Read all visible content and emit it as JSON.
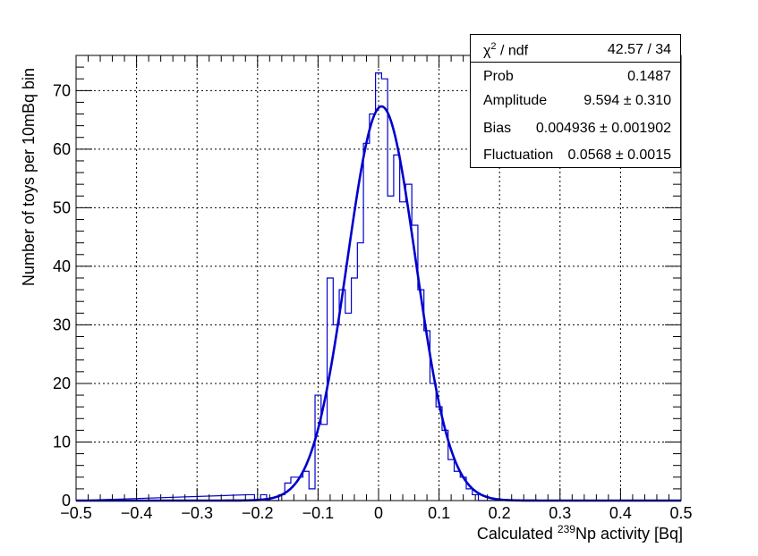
{
  "chart_data": {
    "type": "histogram",
    "xlabel_prefix": "Calculated ",
    "xlabel_sup": "239",
    "xlabel_suffix": "Np activity [Bq]",
    "ylabel": "Number of toys per 10mBq bin",
    "xlim": [
      -0.5,
      0.5
    ],
    "ylim": [
      0,
      76
    ],
    "grid": true,
    "x_ticks": [
      -0.5,
      -0.4,
      -0.3,
      -0.2,
      -0.1,
      0,
      0.1,
      0.2,
      0.3,
      0.4,
      0.5
    ],
    "x_tick_labels": [
      "−0.5",
      "−0.4",
      "−0.3",
      "−0.2",
      "−0.1",
      "0",
      "0.1",
      "0.2",
      "0.3",
      "0.4",
      "0.5"
    ],
    "y_ticks": [
      0,
      10,
      20,
      30,
      40,
      50,
      60,
      70
    ],
    "y_tick_labels": [
      "0",
      "10",
      "20",
      "30",
      "40",
      "50",
      "60",
      "70"
    ],
    "hist_color": "#0000cc",
    "fit_color": "#0000cc",
    "bin_width": 0.01,
    "bins": [
      {
        "x": -0.21,
        "count": 1
      },
      {
        "x": -0.2,
        "count": 0
      },
      {
        "x": -0.19,
        "count": 1
      },
      {
        "x": -0.18,
        "count": 0
      },
      {
        "x": -0.17,
        "count": 0
      },
      {
        "x": -0.16,
        "count": 1
      },
      {
        "x": -0.15,
        "count": 3
      },
      {
        "x": -0.14,
        "count": 4
      },
      {
        "x": -0.13,
        "count": 4
      },
      {
        "x": -0.12,
        "count": 5
      },
      {
        "x": -0.11,
        "count": 2
      },
      {
        "x": -0.1,
        "count": 18
      },
      {
        "x": -0.09,
        "count": 13
      },
      {
        "x": -0.08,
        "count": 38
      },
      {
        "x": -0.07,
        "count": 30
      },
      {
        "x": -0.06,
        "count": 36
      },
      {
        "x": -0.05,
        "count": 32
      },
      {
        "x": -0.04,
        "count": 38
      },
      {
        "x": -0.03,
        "count": 44
      },
      {
        "x": -0.02,
        "count": 61
      },
      {
        "x": -0.01,
        "count": 66
      },
      {
        "x": 0.0,
        "count": 73
      },
      {
        "x": 0.01,
        "count": 72
      },
      {
        "x": 0.02,
        "count": 52
      },
      {
        "x": 0.03,
        "count": 59
      },
      {
        "x": 0.04,
        "count": 51
      },
      {
        "x": 0.05,
        "count": 54
      },
      {
        "x": 0.06,
        "count": 47
      },
      {
        "x": 0.07,
        "count": 36
      },
      {
        "x": 0.08,
        "count": 29
      },
      {
        "x": 0.09,
        "count": 20
      },
      {
        "x": 0.1,
        "count": 16
      },
      {
        "x": 0.11,
        "count": 12
      },
      {
        "x": 0.12,
        "count": 7
      },
      {
        "x": 0.13,
        "count": 5
      },
      {
        "x": 0.14,
        "count": 4
      },
      {
        "x": 0.15,
        "count": 2
      },
      {
        "x": 0.16,
        "count": 1
      },
      {
        "x": 0.17,
        "count": 0
      }
    ],
    "fit": {
      "function": "gaussian",
      "amplitude_param": 9.594,
      "mean": 0.004936,
      "sigma": 0.0568
    }
  },
  "stats": {
    "rows": [
      {
        "label_main": "χ",
        "label_sup": "2",
        "label_rest": " / ndf",
        "value": "42.57 / 34"
      },
      {
        "label_main": "Prob",
        "label_sup": "",
        "label_rest": "",
        "value": "0.1487"
      },
      {
        "label_main": "Amplitude",
        "label_sup": "",
        "label_rest": "",
        "value": "9.594 ± 0.310"
      },
      {
        "label_main": "Bias",
        "label_sup": "",
        "label_rest": "",
        "value": "0.004936 ± 0.001902"
      },
      {
        "label_main": "Fluctuation",
        "label_sup": "",
        "label_rest": "",
        "value": "0.0568 ± 0.0015"
      }
    ]
  }
}
